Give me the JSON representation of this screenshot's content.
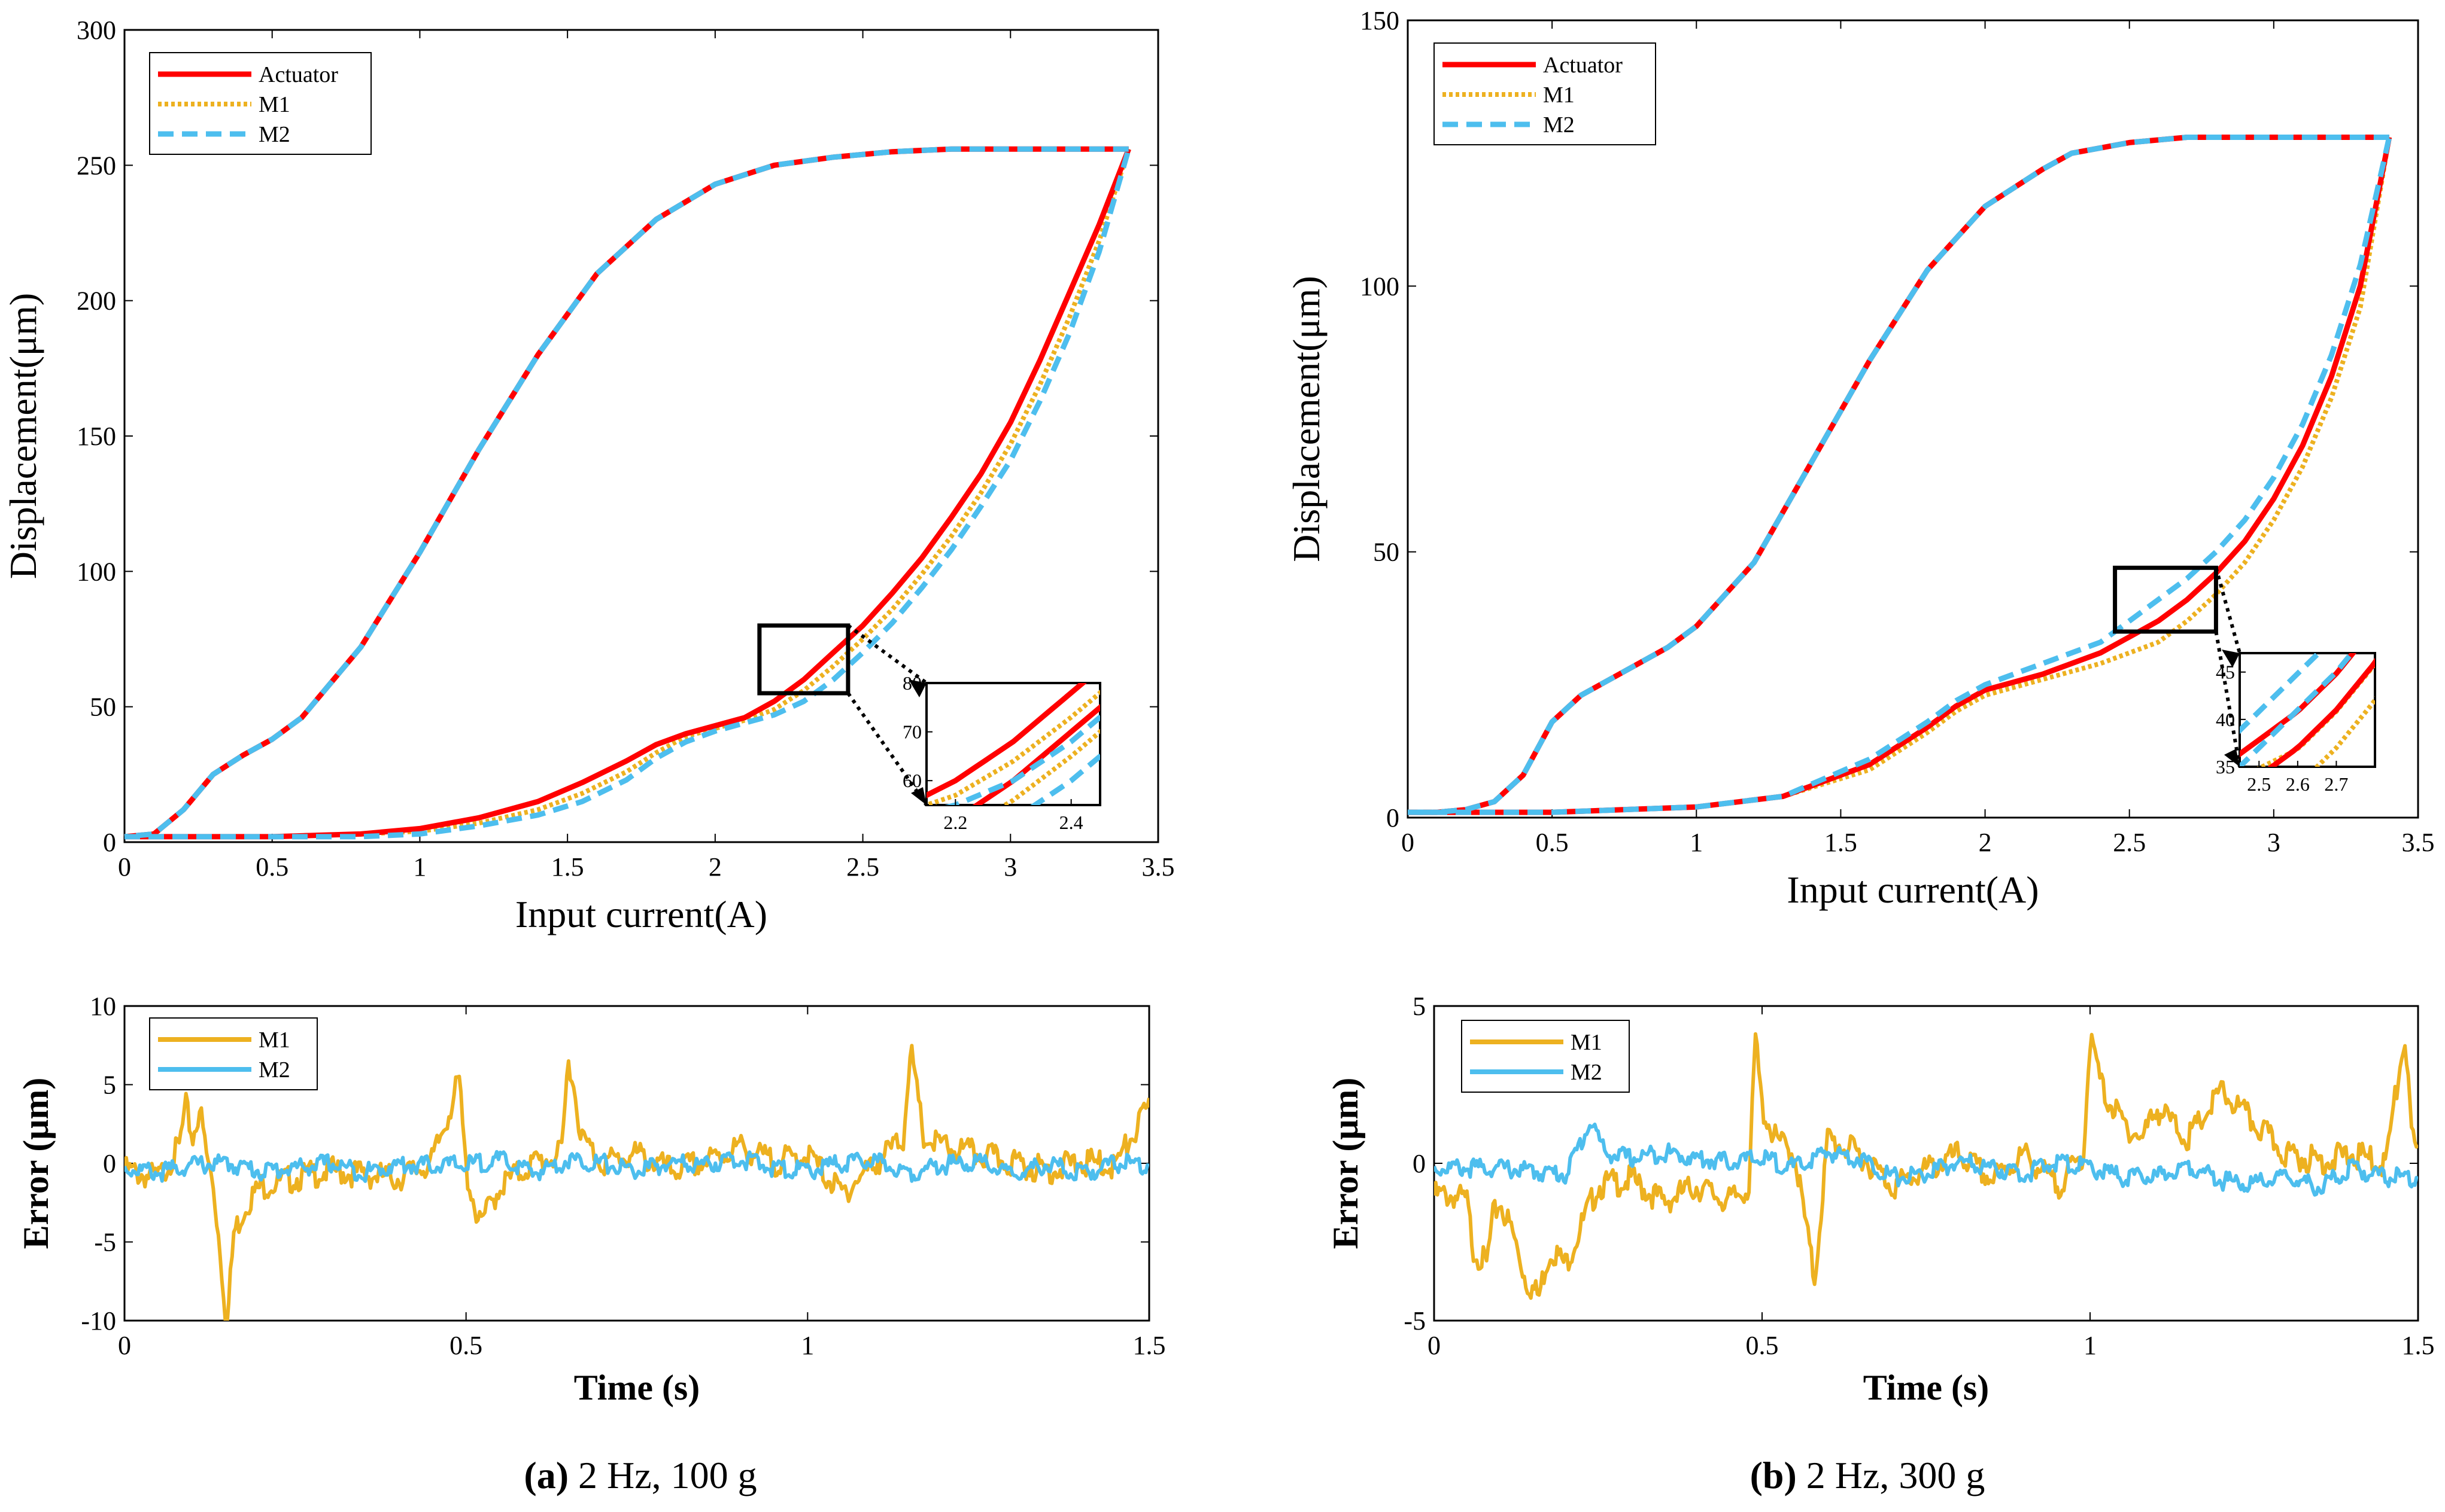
{
  "colors": {
    "actuator": "#ff0000",
    "m1": "#edb120",
    "m2": "#4dbeee",
    "axis": "#000000"
  },
  "chart_data": [
    {
      "id": "a-hysteresis",
      "type": "line",
      "xlabel": "Input current(A)",
      "ylabel": "Displacement(μm)",
      "xlim": [
        0,
        3.5
      ],
      "ylim": [
        0,
        300
      ],
      "xticks": [
        0,
        0.5,
        1,
        1.5,
        2,
        2.5,
        3,
        3.5
      ],
      "xtick_labels": [
        "0",
        "0.5",
        "1",
        "1.5",
        "2",
        "2.5",
        "3",
        "3.5"
      ],
      "yticks": [
        0,
        50,
        100,
        150,
        200,
        250,
        300
      ],
      "ytick_labels": [
        "0",
        "50",
        "100",
        "150",
        "200",
        "250",
        "300"
      ],
      "legend": [
        "Actuator",
        "M1",
        "M2"
      ],
      "legend_position": "top-left",
      "ascending_branches": [
        {
          "x": [
            0.0,
            0.5,
            0.8,
            1.0,
            1.2,
            1.4,
            1.55,
            1.7,
            1.8,
            1.9,
            2.0,
            2.1,
            2.2,
            2.3,
            2.4,
            2.5,
            2.6,
            2.7,
            2.8,
            2.9,
            3.0,
            3.1,
            3.2,
            3.3,
            3.4
          ],
          "y": [
            2,
            2,
            3,
            5,
            9,
            15,
            22,
            30,
            36,
            40,
            43,
            46,
            52,
            60,
            70,
            80,
            92,
            105,
            120,
            136,
            155,
            178,
            203,
            228,
            256
          ]
        },
        {
          "x": [
            0.0,
            0.5,
            0.8,
            1.0,
            1.2,
            1.4,
            1.55,
            1.7,
            1.8,
            1.9,
            2.0,
            2.1,
            2.2,
            2.3,
            2.4,
            2.5,
            2.6,
            2.7,
            2.8,
            2.9,
            3.0,
            3.1,
            3.2,
            3.3,
            3.4
          ],
          "y": [
            2,
            2,
            3,
            4,
            7,
            12,
            18,
            26,
            33,
            39,
            42,
            45,
            49,
            56,
            65,
            75,
            86,
            99,
            113,
            129,
            147,
            169,
            194,
            222,
            256
          ]
        },
        {
          "x": [
            0.0,
            0.5,
            0.8,
            1.0,
            1.2,
            1.4,
            1.55,
            1.7,
            1.8,
            1.9,
            2.0,
            2.1,
            2.2,
            2.3,
            2.4,
            2.5,
            2.6,
            2.7,
            2.8,
            2.9,
            3.0,
            3.1,
            3.2,
            3.3,
            3.4
          ],
          "y": [
            2,
            2,
            2,
            3,
            6,
            10,
            15,
            23,
            31,
            37,
            41,
            44,
            47,
            52,
            60,
            70,
            81,
            94,
            108,
            124,
            141,
            163,
            188,
            218,
            256
          ]
        }
      ],
      "descending_branch": {
        "x": [
          3.4,
          3.3,
          3.2,
          3.0,
          2.8,
          2.6,
          2.4,
          2.2,
          2.0,
          1.8,
          1.6,
          1.4,
          1.2,
          1.0,
          0.8,
          0.6,
          0.5,
          0.4,
          0.3,
          0.2,
          0.1,
          0.0
        ],
        "y": [
          256,
          256,
          256,
          256,
          256,
          255,
          253,
          250,
          243,
          230,
          210,
          180,
          145,
          107,
          72,
          46,
          38,
          32,
          25,
          12,
          3,
          2
        ]
      },
      "inset": {
        "xlim": [
          2.15,
          2.45
        ],
        "ylim": [
          55,
          80
        ],
        "xtick_labels": [
          "2.2",
          "2.4"
        ],
        "ytick_labels": [
          "60",
          "70",
          "80"
        ]
      }
    },
    {
      "id": "a-error",
      "type": "line",
      "xlabel": "Time (s)",
      "ylabel": "Error (μm)",
      "xlim": [
        0,
        1.5
      ],
      "ylim": [
        -10,
        10
      ],
      "xticks": [
        0,
        0.5,
        1,
        1.5
      ],
      "xtick_labels": [
        "0",
        "0.5",
        "1",
        "1.5"
      ],
      "yticks": [
        -10,
        -5,
        0,
        5,
        10
      ],
      "ytick_labels": [
        "-10",
        "-5",
        "0",
        "5",
        "10"
      ],
      "legend": [
        "M1",
        "M2"
      ],
      "legend_position": "top-left",
      "series": [
        {
          "name": "M1",
          "t": [
            0,
            0.05,
            0.08,
            0.09,
            0.1,
            0.11,
            0.12,
            0.13,
            0.14,
            0.15,
            0.16,
            0.18,
            0.2,
            0.25,
            0.3,
            0.4,
            0.45,
            0.49,
            0.5,
            0.52,
            0.55,
            0.6,
            0.64,
            0.65,
            0.67,
            0.7,
            0.75,
            0.8,
            0.85,
            0.9,
            0.95,
            1.0,
            1.05,
            1.1,
            1.14,
            1.15,
            1.17,
            1.2,
            1.25,
            1.3,
            1.35,
            1.4,
            1.45,
            1.5
          ],
          "y": [
            0,
            -0.5,
            1.5,
            4,
            2,
            4,
            1,
            -1,
            -5,
            -10,
            -4,
            -2,
            -1,
            -0.5,
            0,
            -0.5,
            0.5,
            5.7,
            0,
            -3.5,
            -1,
            0.5,
            1,
            7.3,
            2,
            0.5,
            1,
            0,
            0.5,
            1.5,
            0.5,
            1,
            -1.5,
            0.5,
            2,
            7.8,
            2,
            1.5,
            1,
            0.5,
            0,
            0.5,
            0.3,
            4
          ]
        },
        {
          "name": "M2",
          "t": [
            0,
            0.05,
            0.1,
            0.15,
            0.2,
            0.25,
            0.3,
            0.35,
            0.4,
            0.45,
            0.5,
            0.55,
            0.6,
            0.65,
            0.7,
            0.75,
            0.8,
            0.85,
            0.9,
            0.95,
            1.0,
            1.05,
            1.1,
            1.15,
            1.2,
            1.25,
            1.3,
            1.35,
            1.4,
            1.45,
            1.5
          ],
          "y": [
            0,
            -0.3,
            0.2,
            0.3,
            -0.2,
            0,
            0.3,
            -0.3,
            0.2,
            0.2,
            0.2,
            0.5,
            -0.3,
            0.5,
            0.3,
            -0.2,
            0.3,
            0.2,
            0.6,
            0,
            -0.2,
            0.3,
            0.4,
            -0.3,
            0.2,
            0.4,
            -0.5,
            0.3,
            -0.4,
            0.3,
            0.2
          ]
        }
      ],
      "caption_label": "(a)",
      "caption_text": " 2 Hz, 100 g"
    },
    {
      "id": "b-hysteresis",
      "type": "line",
      "xlabel": "Input current(A)",
      "ylabel": "Displacement(μm)",
      "xlim": [
        0,
        3.5
      ],
      "ylim": [
        0,
        150
      ],
      "xticks": [
        0,
        0.5,
        1,
        1.5,
        2,
        2.5,
        3,
        3.5
      ],
      "xtick_labels": [
        "0",
        "0.5",
        "1",
        "1.5",
        "2",
        "2.5",
        "3",
        "3.5"
      ],
      "yticks": [
        0,
        50,
        100,
        150
      ],
      "ytick_labels": [
        "0",
        "50",
        "100",
        "150"
      ],
      "legend": [
        "Actuator",
        "M1",
        "M2"
      ],
      "legend_position": "top-left",
      "ascending_branches": [
        {
          "x": [
            0.0,
            0.5,
            1.0,
            1.3,
            1.6,
            1.8,
            1.9,
            2.0,
            2.2,
            2.4,
            2.5,
            2.6,
            2.7,
            2.8,
            2.9,
            3.0,
            3.1,
            3.2,
            3.3,
            3.4
          ],
          "y": [
            1,
            1,
            2,
            4,
            10,
            17,
            21,
            24,
            27,
            31,
            34,
            37,
            41,
            46,
            52,
            60,
            70,
            83,
            100,
            128
          ]
        },
        {
          "x": [
            0.0,
            0.5,
            1.0,
            1.3,
            1.6,
            1.8,
            1.9,
            2.0,
            2.2,
            2.4,
            2.5,
            2.6,
            2.7,
            2.8,
            2.9,
            3.0,
            3.1,
            3.2,
            3.3,
            3.4
          ],
          "y": [
            1,
            1,
            2,
            4,
            9,
            16,
            20,
            23,
            26,
            29,
            31,
            33,
            37,
            42,
            48,
            56,
            66,
            79,
            96,
            128
          ]
        },
        {
          "x": [
            0.0,
            0.5,
            1.0,
            1.3,
            1.6,
            1.8,
            1.9,
            2.0,
            2.2,
            2.4,
            2.5,
            2.6,
            2.7,
            2.8,
            2.9,
            3.0,
            3.1,
            3.2,
            3.3,
            3.4
          ],
          "y": [
            1,
            1,
            2,
            4,
            11,
            18,
            22,
            25,
            29,
            33,
            37,
            41,
            45,
            50,
            56,
            64,
            74,
            87,
            104,
            128
          ]
        }
      ],
      "descending_branch": {
        "x": [
          3.4,
          3.3,
          3.1,
          2.9,
          2.7,
          2.5,
          2.3,
          2.2,
          2.0,
          1.8,
          1.6,
          1.4,
          1.2,
          1.0,
          0.9,
          0.8,
          0.7,
          0.6,
          0.5,
          0.4,
          0.3,
          0.2,
          0.1,
          0.0
        ],
        "y": [
          128,
          128,
          128,
          128,
          128,
          127,
          125,
          122,
          115,
          103,
          86,
          67,
          48,
          36,
          32,
          29,
          26,
          23,
          18,
          8,
          3,
          1.5,
          1,
          1
        ]
      },
      "inset": {
        "xlim": [
          2.45,
          2.8
        ],
        "ylim": [
          35,
          47
        ],
        "xtick_labels": [
          "2.5",
          "2.6",
          "2.7"
        ],
        "ytick_labels": [
          "35",
          "40",
          "45"
        ]
      }
    },
    {
      "id": "b-error",
      "type": "line",
      "xlabel": "Time (s)",
      "ylabel": "Error (μm)",
      "xlim": [
        0,
        1.5
      ],
      "ylim": [
        -5,
        5
      ],
      "xticks": [
        0,
        0.5,
        1,
        1.5
      ],
      "xtick_labels": [
        "0",
        "0.5",
        "1",
        "1.5"
      ],
      "yticks": [
        -5,
        0,
        5
      ],
      "ytick_labels": [
        "-5",
        "0",
        "5"
      ],
      "legend": [
        "M1",
        "M2"
      ],
      "legend_position": "top-left",
      "series": [
        {
          "name": "M1",
          "t": [
            0,
            0.03,
            0.05,
            0.06,
            0.08,
            0.09,
            0.1,
            0.12,
            0.14,
            0.16,
            0.17,
            0.18,
            0.2,
            0.22,
            0.25,
            0.3,
            0.35,
            0.4,
            0.45,
            0.48,
            0.49,
            0.5,
            0.52,
            0.55,
            0.58,
            0.6,
            0.65,
            0.7,
            0.75,
            0.8,
            0.85,
            0.9,
            0.95,
            0.99,
            1.0,
            1.02,
            1.05,
            1.08,
            1.1,
            1.15,
            1.2,
            1.25,
            1.3,
            1.35,
            1.4,
            1.45,
            1.48,
            1.49,
            1.5
          ],
          "y": [
            -0.8,
            -0.8,
            -1,
            -2.5,
            -3,
            -1.5,
            -1,
            -2,
            -3.5,
            -4,
            -3,
            -2.5,
            -3,
            -2,
            -0.5,
            -0.3,
            -1,
            -0.5,
            -1,
            -0.5,
            4.2,
            2,
            1,
            0.5,
            -3.5,
            1,
            0.5,
            -0.5,
            0,
            0.5,
            -0.3,
            0.5,
            -0.5,
            0.5,
            4.2,
            2.5,
            1.5,
            1,
            2,
            1,
            2.5,
            1.5,
            0.5,
            0.3,
            0.5,
            0.2,
            4.3,
            1,
            0.5
          ]
        },
        {
          "name": "M2",
          "t": [
            0,
            0.1,
            0.2,
            0.24,
            0.26,
            0.3,
            0.35,
            0.4,
            0.45,
            0.5,
            0.55,
            0.6,
            0.65,
            0.7,
            0.75,
            0.8,
            0.85,
            0.9,
            0.95,
            1.0,
            1.05,
            1.1,
            1.15,
            1.2,
            1.25,
            1.3,
            1.35,
            1.4,
            1.45,
            1.5
          ],
          "y": [
            0,
            0,
            -0.2,
            1.5,
            0.5,
            0.3,
            0.5,
            0.3,
            0.2,
            0.3,
            0,
            0.5,
            0.3,
            -0.3,
            -0.2,
            0.2,
            0,
            -0.2,
            0.2,
            0,
            -0.3,
            -0.3,
            0.1,
            -0.4,
            -0.5,
            -0.3,
            -0.6,
            0,
            -0.3,
            -0.3
          ]
        }
      ],
      "caption_label": "(b)",
      "caption_text": " 2 Hz, 300 g"
    }
  ]
}
